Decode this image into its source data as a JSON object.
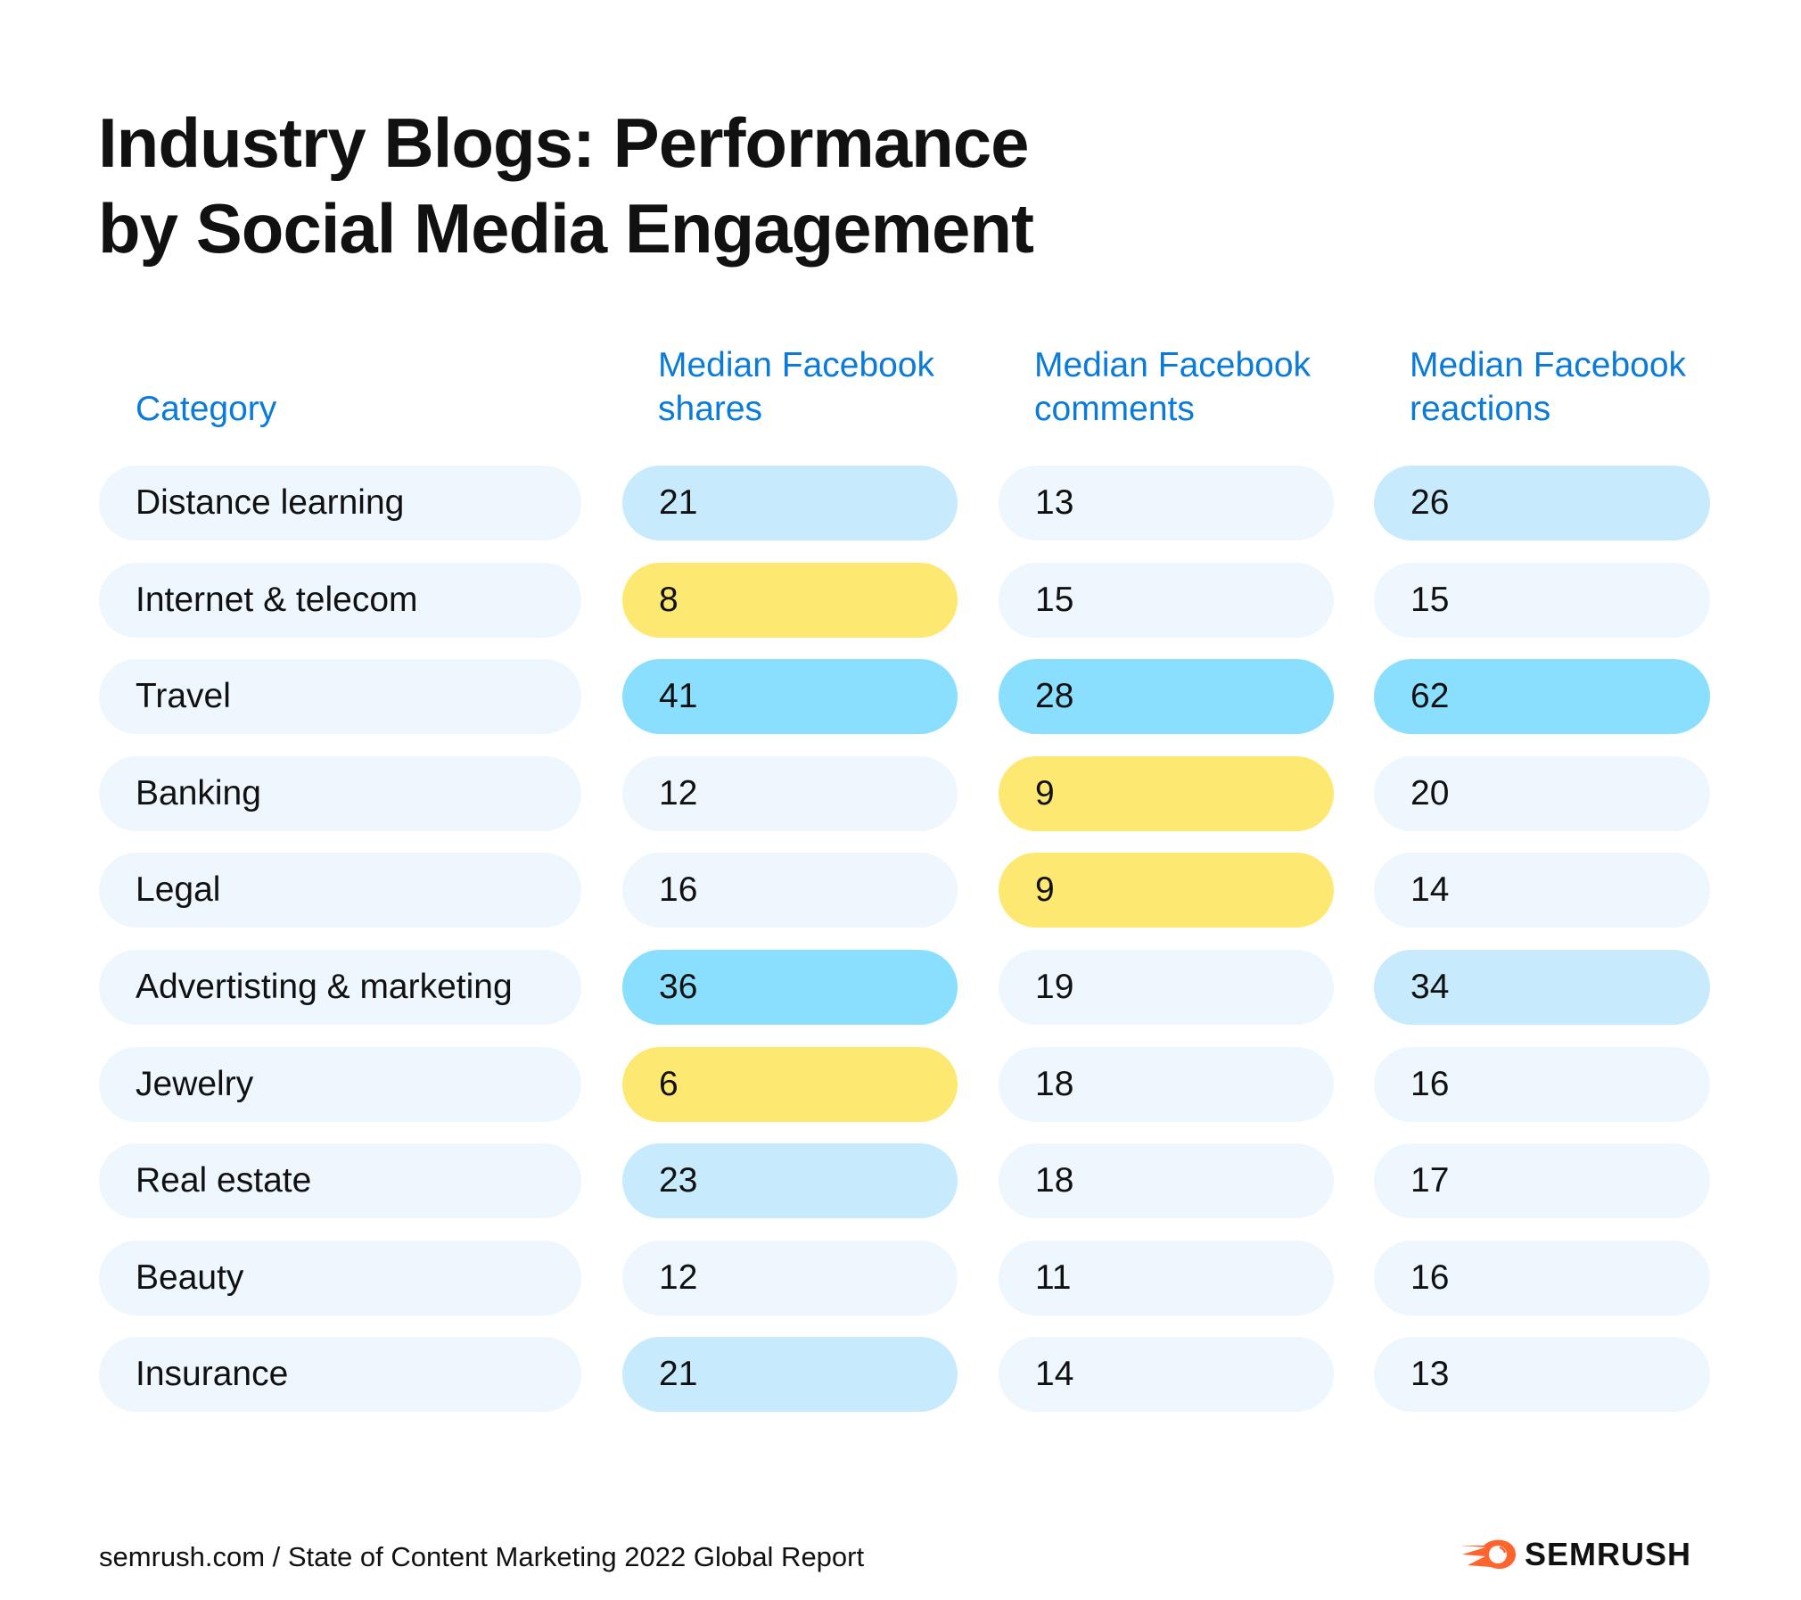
{
  "title": "Industry Blogs: Performance by Social Media Engagement",
  "title_lines": [
    "Industry Blogs: Performance",
    "by Social Media Engagement"
  ],
  "headers": {
    "category": "Category",
    "columns": [
      [
        "Median Facebook",
        "shares"
      ],
      [
        "Median Facebook",
        "comments"
      ],
      [
        "Median Facebook",
        "reactions"
      ]
    ]
  },
  "colors": {
    "header": "#0a7bd8",
    "none": "#eef7fe",
    "light": "#c8eafd",
    "high": "#89dffd",
    "low": "#fde972",
    "logo": "#ff642d"
  },
  "rows": [
    {
      "category": "Distance learning",
      "values": [
        "21",
        "13",
        "26"
      ],
      "levels": [
        "light",
        "none",
        "light"
      ]
    },
    {
      "category": "Internet & telecom",
      "values": [
        "8",
        "15",
        "15"
      ],
      "levels": [
        "low",
        "none",
        "none"
      ]
    },
    {
      "category": "Travel",
      "values": [
        "41",
        "28",
        "62"
      ],
      "levels": [
        "high",
        "high",
        "high"
      ]
    },
    {
      "category": "Banking",
      "values": [
        "12",
        "9",
        "20"
      ],
      "levels": [
        "none",
        "low",
        "none"
      ]
    },
    {
      "category": "Legal",
      "values": [
        "16",
        "9",
        "14"
      ],
      "levels": [
        "none",
        "low",
        "none"
      ]
    },
    {
      "category": "Advertisting & marketing",
      "values": [
        "36",
        "19",
        "34"
      ],
      "levels": [
        "high",
        "none",
        "light"
      ]
    },
    {
      "category": "Jewelry",
      "values": [
        "6",
        "18",
        "16"
      ],
      "levels": [
        "low",
        "none",
        "none"
      ]
    },
    {
      "category": "Real estate",
      "values": [
        "23",
        "18",
        "17"
      ],
      "levels": [
        "light",
        "none",
        "none"
      ]
    },
    {
      "category": "Beauty",
      "values": [
        "12",
        "11",
        "16"
      ],
      "levels": [
        "none",
        "none",
        "none"
      ]
    },
    {
      "category": "Insurance",
      "values": [
        "21",
        "14",
        "13"
      ],
      "levels": [
        "light",
        "none",
        "none"
      ]
    }
  ],
  "footer": {
    "source": "semrush.com / State of Content Marketing 2022 Global Report",
    "logo": "SEMRUSH"
  }
}
